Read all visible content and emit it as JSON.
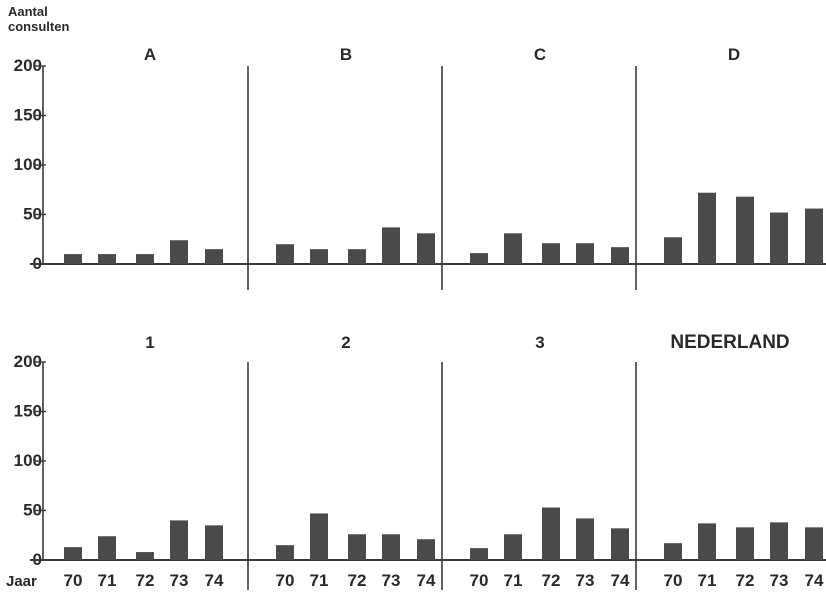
{
  "chart_data": {
    "type": "bar",
    "ylabel": "Aantal consulten",
    "xlabel": "Jaar",
    "ylim": [
      0,
      200
    ],
    "yticks": [
      "200",
      "150",
      "100",
      "50",
      "0"
    ],
    "categories": [
      "70",
      "71",
      "72",
      "73",
      "74"
    ],
    "colors": {
      "bar": "#4a4a4a",
      "axis": "#3a3a3a",
      "text": "#2a2a2a",
      "background": "#ffffff"
    },
    "panels": [
      {
        "title": "A",
        "values": [
          10,
          10,
          10,
          24,
          15
        ]
      },
      {
        "title": "B",
        "values": [
          20,
          15,
          15,
          37,
          31
        ]
      },
      {
        "title": "C",
        "values": [
          11,
          31,
          21,
          21,
          17
        ]
      },
      {
        "title": "D",
        "values": [
          27,
          72,
          68,
          52,
          56
        ]
      },
      {
        "title": "1",
        "values": [
          13,
          24,
          8,
          40,
          35
        ]
      },
      {
        "title": "2",
        "values": [
          15,
          47,
          26,
          26,
          21
        ]
      },
      {
        "title": "3",
        "values": [
          12,
          26,
          53,
          42,
          32
        ]
      },
      {
        "title": "NEDERLAND",
        "values": [
          17,
          37,
          33,
          38,
          33
        ]
      }
    ]
  }
}
